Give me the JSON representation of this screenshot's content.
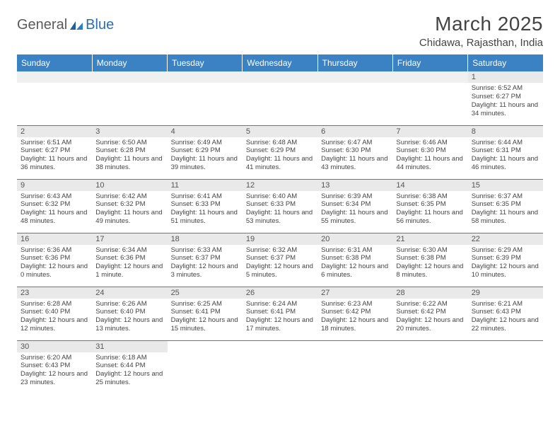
{
  "brand": {
    "word1": "General",
    "word2": "Blue"
  },
  "title": "March 2025",
  "location": "Chidawa, Rajasthan, India",
  "colors": {
    "header_bg": "#3b82c4",
    "header_text": "#ffffff",
    "daynum_bg": "#e9e9e9",
    "row_divider": "#3b82c4",
    "spacer_bg": "#f0f0f0",
    "body_text": "#444444",
    "logo_dark": "#5a5a5a",
    "logo_blue": "#2b6fb0"
  },
  "day_headers": [
    "Sunday",
    "Monday",
    "Tuesday",
    "Wednesday",
    "Thursday",
    "Friday",
    "Saturday"
  ],
  "weeks": [
    [
      null,
      null,
      null,
      null,
      null,
      null,
      {
        "n": "1",
        "sr": "Sunrise: 6:52 AM",
        "ss": "Sunset: 6:27 PM",
        "dl": "Daylight: 11 hours and 34 minutes."
      }
    ],
    [
      {
        "n": "2",
        "sr": "Sunrise: 6:51 AM",
        "ss": "Sunset: 6:27 PM",
        "dl": "Daylight: 11 hours and 36 minutes."
      },
      {
        "n": "3",
        "sr": "Sunrise: 6:50 AM",
        "ss": "Sunset: 6:28 PM",
        "dl": "Daylight: 11 hours and 38 minutes."
      },
      {
        "n": "4",
        "sr": "Sunrise: 6:49 AM",
        "ss": "Sunset: 6:29 PM",
        "dl": "Daylight: 11 hours and 39 minutes."
      },
      {
        "n": "5",
        "sr": "Sunrise: 6:48 AM",
        "ss": "Sunset: 6:29 PM",
        "dl": "Daylight: 11 hours and 41 minutes."
      },
      {
        "n": "6",
        "sr": "Sunrise: 6:47 AM",
        "ss": "Sunset: 6:30 PM",
        "dl": "Daylight: 11 hours and 43 minutes."
      },
      {
        "n": "7",
        "sr": "Sunrise: 6:46 AM",
        "ss": "Sunset: 6:30 PM",
        "dl": "Daylight: 11 hours and 44 minutes."
      },
      {
        "n": "8",
        "sr": "Sunrise: 6:44 AM",
        "ss": "Sunset: 6:31 PM",
        "dl": "Daylight: 11 hours and 46 minutes."
      }
    ],
    [
      {
        "n": "9",
        "sr": "Sunrise: 6:43 AM",
        "ss": "Sunset: 6:32 PM",
        "dl": "Daylight: 11 hours and 48 minutes."
      },
      {
        "n": "10",
        "sr": "Sunrise: 6:42 AM",
        "ss": "Sunset: 6:32 PM",
        "dl": "Daylight: 11 hours and 49 minutes."
      },
      {
        "n": "11",
        "sr": "Sunrise: 6:41 AM",
        "ss": "Sunset: 6:33 PM",
        "dl": "Daylight: 11 hours and 51 minutes."
      },
      {
        "n": "12",
        "sr": "Sunrise: 6:40 AM",
        "ss": "Sunset: 6:33 PM",
        "dl": "Daylight: 11 hours and 53 minutes."
      },
      {
        "n": "13",
        "sr": "Sunrise: 6:39 AM",
        "ss": "Sunset: 6:34 PM",
        "dl": "Daylight: 11 hours and 55 minutes."
      },
      {
        "n": "14",
        "sr": "Sunrise: 6:38 AM",
        "ss": "Sunset: 6:35 PM",
        "dl": "Daylight: 11 hours and 56 minutes."
      },
      {
        "n": "15",
        "sr": "Sunrise: 6:37 AM",
        "ss": "Sunset: 6:35 PM",
        "dl": "Daylight: 11 hours and 58 minutes."
      }
    ],
    [
      {
        "n": "16",
        "sr": "Sunrise: 6:36 AM",
        "ss": "Sunset: 6:36 PM",
        "dl": "Daylight: 12 hours and 0 minutes."
      },
      {
        "n": "17",
        "sr": "Sunrise: 6:34 AM",
        "ss": "Sunset: 6:36 PM",
        "dl": "Daylight: 12 hours and 1 minute."
      },
      {
        "n": "18",
        "sr": "Sunrise: 6:33 AM",
        "ss": "Sunset: 6:37 PM",
        "dl": "Daylight: 12 hours and 3 minutes."
      },
      {
        "n": "19",
        "sr": "Sunrise: 6:32 AM",
        "ss": "Sunset: 6:37 PM",
        "dl": "Daylight: 12 hours and 5 minutes."
      },
      {
        "n": "20",
        "sr": "Sunrise: 6:31 AM",
        "ss": "Sunset: 6:38 PM",
        "dl": "Daylight: 12 hours and 6 minutes."
      },
      {
        "n": "21",
        "sr": "Sunrise: 6:30 AM",
        "ss": "Sunset: 6:38 PM",
        "dl": "Daylight: 12 hours and 8 minutes."
      },
      {
        "n": "22",
        "sr": "Sunrise: 6:29 AM",
        "ss": "Sunset: 6:39 PM",
        "dl": "Daylight: 12 hours and 10 minutes."
      }
    ],
    [
      {
        "n": "23",
        "sr": "Sunrise: 6:28 AM",
        "ss": "Sunset: 6:40 PM",
        "dl": "Daylight: 12 hours and 12 minutes."
      },
      {
        "n": "24",
        "sr": "Sunrise: 6:26 AM",
        "ss": "Sunset: 6:40 PM",
        "dl": "Daylight: 12 hours and 13 minutes."
      },
      {
        "n": "25",
        "sr": "Sunrise: 6:25 AM",
        "ss": "Sunset: 6:41 PM",
        "dl": "Daylight: 12 hours and 15 minutes."
      },
      {
        "n": "26",
        "sr": "Sunrise: 6:24 AM",
        "ss": "Sunset: 6:41 PM",
        "dl": "Daylight: 12 hours and 17 minutes."
      },
      {
        "n": "27",
        "sr": "Sunrise: 6:23 AM",
        "ss": "Sunset: 6:42 PM",
        "dl": "Daylight: 12 hours and 18 minutes."
      },
      {
        "n": "28",
        "sr": "Sunrise: 6:22 AM",
        "ss": "Sunset: 6:42 PM",
        "dl": "Daylight: 12 hours and 20 minutes."
      },
      {
        "n": "29",
        "sr": "Sunrise: 6:21 AM",
        "ss": "Sunset: 6:43 PM",
        "dl": "Daylight: 12 hours and 22 minutes."
      }
    ],
    [
      {
        "n": "30",
        "sr": "Sunrise: 6:20 AM",
        "ss": "Sunset: 6:43 PM",
        "dl": "Daylight: 12 hours and 23 minutes."
      },
      {
        "n": "31",
        "sr": "Sunrise: 6:18 AM",
        "ss": "Sunset: 6:44 PM",
        "dl": "Daylight: 12 hours and 25 minutes."
      },
      null,
      null,
      null,
      null,
      null
    ]
  ]
}
